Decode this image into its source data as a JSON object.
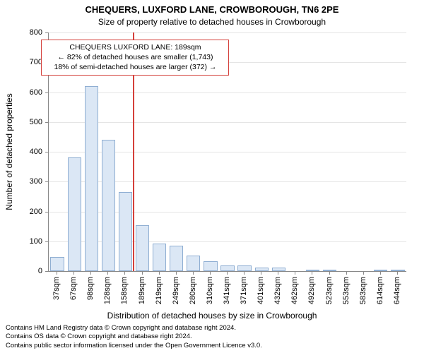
{
  "title": "CHEQUERS, LUXFORD LANE, CROWBOROUGH, TN6 2PE",
  "subtitle": "Size of property relative to detached houses in Crowborough",
  "ylabel": "Number of detached properties",
  "xlabel": "Distribution of detached houses by size in Crowborough",
  "footer_line1": "Contains HM Land Registry data © Crown copyright and database right 2024.",
  "footer_line2": "Contains OS data © Crown copyright and database right 2024.",
  "footer_line3": "Contains public sector information licensed under the Open Government Licence v3.0.",
  "chart": {
    "type": "histogram",
    "y_axis": {
      "min": 0,
      "max": 800,
      "tick_step": 100
    },
    "x_tick_labels": [
      "37sqm",
      "67sqm",
      "98sqm",
      "128sqm",
      "158sqm",
      "189sqm",
      "219sqm",
      "249sqm",
      "280sqm",
      "310sqm",
      "341sqm",
      "371sqm",
      "401sqm",
      "432sqm",
      "462sqm",
      "492sqm",
      "523sqm",
      "553sqm",
      "583sqm",
      "614sqm",
      "644sqm"
    ],
    "bar_values": [
      48,
      382,
      620,
      440,
      265,
      155,
      92,
      86,
      52,
      32,
      18,
      18,
      12,
      12,
      0,
      4,
      4,
      0,
      0,
      4,
      4
    ],
    "bar_fill": "#dbe7f5",
    "bar_stroke": "#8faed2",
    "reference_line": {
      "index_after_bar": 4,
      "color": "#d43f3a",
      "width": 2
    },
    "grid_color": "#e5e5e5",
    "axis_color": "#888888",
    "background_color": "#ffffff",
    "title_fontsize": 13,
    "subtitle_fontsize": 12,
    "axis_label_fontsize": 12,
    "tick_fontsize": 11,
    "x_tick_rotation": -90
  },
  "annotation": {
    "line1": "CHEQUERS LUXFORD LANE: 189sqm",
    "line2": "← 82% of detached houses are smaller (1,743)",
    "line3": "18% of semi-detached houses are larger (372) →",
    "border_color": "#d43f3a",
    "text_color": "#000000",
    "fontsize": 10.5
  }
}
